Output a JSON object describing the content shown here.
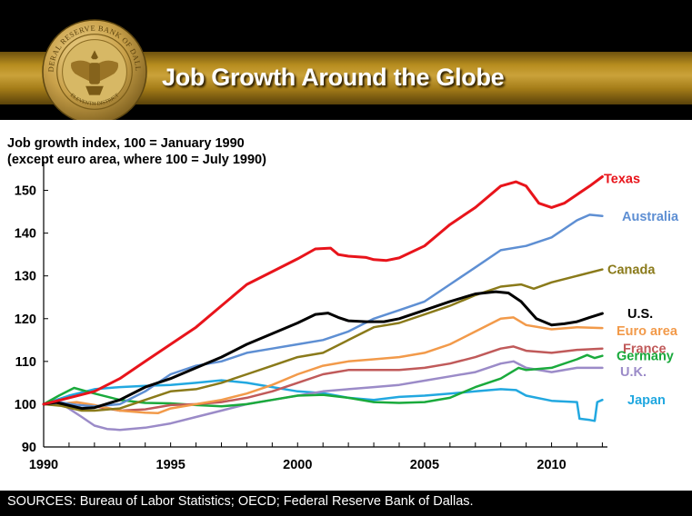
{
  "slide": {
    "title": "Job Growth Around the Globe",
    "logo": {
      "name": "federal-reserve-seal",
      "ring_text": "FEDERAL RESERVE BANK OF DALLAS",
      "bottom_text": "ELEVENTH DISTRICT"
    },
    "sources": "SOURCES: Bureau of Labor Statistics; OECD; Federal Reserve Bank of Dallas.",
    "colors": {
      "header_gold": "#b78d1f",
      "background": "#000000",
      "plot_background": "#ffffff"
    }
  },
  "chart_data": {
    "type": "line",
    "title": "Job Growth Around the Globe",
    "ylabel_lines": [
      "Job growth index, 100 = January 1990",
      "(except euro area, where 100 = July 1990)"
    ],
    "xlabel": "",
    "xlim": [
      1990,
      2012.2
    ],
    "ylim": [
      90,
      155
    ],
    "x_ticks": [
      1990,
      1995,
      2000,
      2005,
      2010
    ],
    "y_ticks": [
      90,
      100,
      110,
      120,
      130,
      140,
      150
    ],
    "grid": false,
    "legend": "direct labels at right end of lines",
    "series": [
      {
        "name": "Texas",
        "color": "#e8141b",
        "width": 3,
        "points": [
          [
            1990,
            100
          ],
          [
            1991,
            101.5
          ],
          [
            1992,
            103
          ],
          [
            1993,
            106
          ],
          [
            1994,
            110
          ],
          [
            1995,
            114
          ],
          [
            1996,
            118
          ],
          [
            1997,
            123
          ],
          [
            1998,
            128
          ],
          [
            1999,
            131
          ],
          [
            2000,
            134
          ],
          [
            2000.7,
            136.3
          ],
          [
            2001.3,
            136.5
          ],
          [
            2001.6,
            135
          ],
          [
            2002,
            134.6
          ],
          [
            2002.7,
            134.3
          ],
          [
            2003,
            133.8
          ],
          [
            2003.5,
            133.6
          ],
          [
            2004,
            134.2
          ],
          [
            2005,
            137
          ],
          [
            2006,
            142
          ],
          [
            2007,
            146
          ],
          [
            2008,
            151
          ],
          [
            2008.6,
            152
          ],
          [
            2009,
            151
          ],
          [
            2009.5,
            147
          ],
          [
            2010,
            146
          ],
          [
            2010.5,
            147
          ],
          [
            2011,
            149
          ],
          [
            2011.5,
            151
          ],
          [
            2012,
            153.2
          ]
        ]
      },
      {
        "name": "Australia",
        "color": "#5e8fd3",
        "width": 2.5,
        "points": [
          [
            1990,
            100
          ],
          [
            1990.7,
            100.4
          ],
          [
            1991.3,
            99.8
          ],
          [
            1992,
            99.5
          ],
          [
            1993,
            100
          ],
          [
            1994,
            103
          ],
          [
            1995,
            107
          ],
          [
            1996,
            109
          ],
          [
            1997,
            110
          ],
          [
            1998,
            112
          ],
          [
            1999,
            113
          ],
          [
            2000,
            114
          ],
          [
            2001,
            115
          ],
          [
            2002,
            117
          ],
          [
            2003,
            120
          ],
          [
            2004,
            122
          ],
          [
            2005,
            124
          ],
          [
            2006,
            128
          ],
          [
            2007,
            132
          ],
          [
            2008,
            136
          ],
          [
            2009,
            137
          ],
          [
            2010,
            139
          ],
          [
            2011,
            143
          ],
          [
            2011.5,
            144.3
          ],
          [
            2012,
            144
          ]
        ]
      },
      {
        "name": "Canada",
        "color": "#8a7a1a",
        "width": 2.5,
        "points": [
          [
            1990,
            100
          ],
          [
            1990.7,
            99.6
          ],
          [
            1991.5,
            98.5
          ],
          [
            1992,
            98.5
          ],
          [
            1993,
            99
          ],
          [
            1994,
            101
          ],
          [
            1995,
            103
          ],
          [
            1996,
            103.5
          ],
          [
            1997,
            105
          ],
          [
            1998,
            107
          ],
          [
            1999,
            109
          ],
          [
            2000,
            111
          ],
          [
            2001,
            112
          ],
          [
            2002,
            115
          ],
          [
            2003,
            118
          ],
          [
            2004,
            119
          ],
          [
            2005,
            121
          ],
          [
            2006,
            123
          ],
          [
            2007,
            125.5
          ],
          [
            2008,
            127.5
          ],
          [
            2008.8,
            128
          ],
          [
            2009.3,
            127
          ],
          [
            2010,
            128.5
          ],
          [
            2011,
            130
          ],
          [
            2012,
            131.5
          ]
        ]
      },
      {
        "name": "U.S.",
        "color": "#000000",
        "width": 3,
        "points": [
          [
            1990,
            100
          ],
          [
            1990.5,
            100.4
          ],
          [
            1991.5,
            99
          ],
          [
            1992,
            99.2
          ],
          [
            1993,
            101
          ],
          [
            1994,
            104
          ],
          [
            1995,
            106
          ],
          [
            1996,
            108.5
          ],
          [
            1997,
            111
          ],
          [
            1998,
            114
          ],
          [
            1999,
            116.5
          ],
          [
            2000,
            119
          ],
          [
            2000.7,
            121
          ],
          [
            2001.2,
            121.3
          ],
          [
            2001.6,
            120.3
          ],
          [
            2002,
            119.5
          ],
          [
            2002.7,
            119.3
          ],
          [
            2003.4,
            119.3
          ],
          [
            2004,
            120
          ],
          [
            2005,
            122
          ],
          [
            2006,
            124
          ],
          [
            2007,
            125.8
          ],
          [
            2007.8,
            126.3
          ],
          [
            2008.3,
            126
          ],
          [
            2008.8,
            124
          ],
          [
            2009.4,
            120
          ],
          [
            2010,
            118.5
          ],
          [
            2010.5,
            118.8
          ],
          [
            2011,
            119.3
          ],
          [
            2011.5,
            120.3
          ],
          [
            2012,
            121.2
          ]
        ]
      },
      {
        "name": "Euro area",
        "color": "#f29a4a",
        "width": 2.5,
        "points": [
          [
            1990.5,
            100
          ],
          [
            1991.3,
            100.5
          ],
          [
            1992,
            99.8
          ],
          [
            1993,
            98.5
          ],
          [
            1994,
            98
          ],
          [
            1994.5,
            97.9
          ],
          [
            1995,
            99
          ],
          [
            1996,
            100
          ],
          [
            1997,
            101
          ],
          [
            1998,
            102.5
          ],
          [
            1999,
            104.5
          ],
          [
            2000,
            107
          ],
          [
            2001,
            109
          ],
          [
            2002,
            110
          ],
          [
            2003,
            110.5
          ],
          [
            2004,
            111
          ],
          [
            2005,
            112
          ],
          [
            2006,
            114
          ],
          [
            2007,
            117
          ],
          [
            2008,
            120
          ],
          [
            2008.5,
            120.3
          ],
          [
            2009,
            118.5
          ],
          [
            2010,
            117.5
          ],
          [
            2011,
            118
          ],
          [
            2012,
            117.8
          ]
        ]
      },
      {
        "name": "France",
        "color": "#c05a5a",
        "width": 2.5,
        "points": [
          [
            1990,
            100
          ],
          [
            1991,
            100
          ],
          [
            1992,
            99.5
          ],
          [
            1993,
            98.5
          ],
          [
            1994,
            98.8
          ],
          [
            1995,
            99.8
          ],
          [
            1996,
            100
          ],
          [
            1997,
            100.5
          ],
          [
            1998,
            101.5
          ],
          [
            1999,
            103
          ],
          [
            2000,
            105
          ],
          [
            2001,
            107
          ],
          [
            2002,
            108
          ],
          [
            2003,
            108
          ],
          [
            2004,
            108
          ],
          [
            2005,
            108.5
          ],
          [
            2006,
            109.5
          ],
          [
            2007,
            111
          ],
          [
            2008,
            113
          ],
          [
            2008.5,
            113.5
          ],
          [
            2009,
            112.5
          ],
          [
            2010,
            112
          ],
          [
            2011,
            112.7
          ],
          [
            2012,
            113
          ]
        ]
      },
      {
        "name": "Germany",
        "color": "#1aaa3c",
        "width": 2.5,
        "points": [
          [
            1990,
            100
          ],
          [
            1990.6,
            102
          ],
          [
            1991.2,
            103.8
          ],
          [
            1992,
            102.5
          ],
          [
            1993,
            101
          ],
          [
            1994,
            100.3
          ],
          [
            1995,
            100.2
          ],
          [
            1996,
            99.8
          ],
          [
            1997,
            99.5
          ],
          [
            1998,
            100
          ],
          [
            1999,
            101
          ],
          [
            2000,
            102
          ],
          [
            2001,
            102.2
          ],
          [
            2002,
            101.5
          ],
          [
            2003,
            100.5
          ],
          [
            2004,
            100.3
          ],
          [
            2005,
            100.5
          ],
          [
            2006,
            101.5
          ],
          [
            2007,
            104
          ],
          [
            2008,
            106
          ],
          [
            2008.7,
            108.5
          ],
          [
            2009,
            108
          ],
          [
            2010,
            108.5
          ],
          [
            2011,
            110.5
          ],
          [
            2011.4,
            111.5
          ],
          [
            2011.7,
            110.8
          ],
          [
            2012,
            111.3
          ]
        ]
      },
      {
        "name": "U.K.",
        "color": "#9b8bc8",
        "width": 2.5,
        "points": [
          [
            1990,
            100
          ],
          [
            1990.6,
            100.5
          ],
          [
            1991.5,
            97
          ],
          [
            1992,
            95
          ],
          [
            1992.5,
            94.2
          ],
          [
            1993,
            94
          ],
          [
            1994,
            94.5
          ],
          [
            1995,
            95.5
          ],
          [
            1996,
            97
          ],
          [
            1997,
            98.5
          ],
          [
            1998,
            100
          ],
          [
            1999,
            101
          ],
          [
            2000,
            102
          ],
          [
            2001,
            103
          ],
          [
            2002,
            103.5
          ],
          [
            2003,
            104
          ],
          [
            2004,
            104.5
          ],
          [
            2005,
            105.5
          ],
          [
            2006,
            106.5
          ],
          [
            2007,
            107.5
          ],
          [
            2008,
            109.5
          ],
          [
            2008.5,
            110
          ],
          [
            2009,
            108.5
          ],
          [
            2010,
            107.5
          ],
          [
            2011,
            108.5
          ],
          [
            2012,
            108.5
          ]
        ]
      },
      {
        "name": "Japan",
        "color": "#22a8e0",
        "width": 2.5,
        "points": [
          [
            1990,
            100
          ],
          [
            1991,
            102
          ],
          [
            1992,
            103.5
          ],
          [
            1993,
            104
          ],
          [
            1994,
            104.3
          ],
          [
            1995,
            104.5
          ],
          [
            1996,
            105
          ],
          [
            1997,
            105.6
          ],
          [
            1998,
            105
          ],
          [
            1999,
            104
          ],
          [
            2000,
            103
          ],
          [
            2001,
            102.6
          ],
          [
            2002,
            101.5
          ],
          [
            2003,
            101
          ],
          [
            2004,
            101.7
          ],
          [
            2005,
            102
          ],
          [
            2006,
            102.5
          ],
          [
            2007,
            103
          ],
          [
            2008,
            103.5
          ],
          [
            2008.6,
            103.3
          ],
          [
            2009,
            102
          ],
          [
            2010,
            100.8
          ],
          [
            2011,
            100.5
          ],
          [
            2011.1,
            96.6
          ],
          [
            2011.5,
            96.3
          ],
          [
            2011.7,
            96.1
          ],
          [
            2011.8,
            100.5
          ],
          [
            2012,
            101
          ]
        ]
      }
    ]
  }
}
